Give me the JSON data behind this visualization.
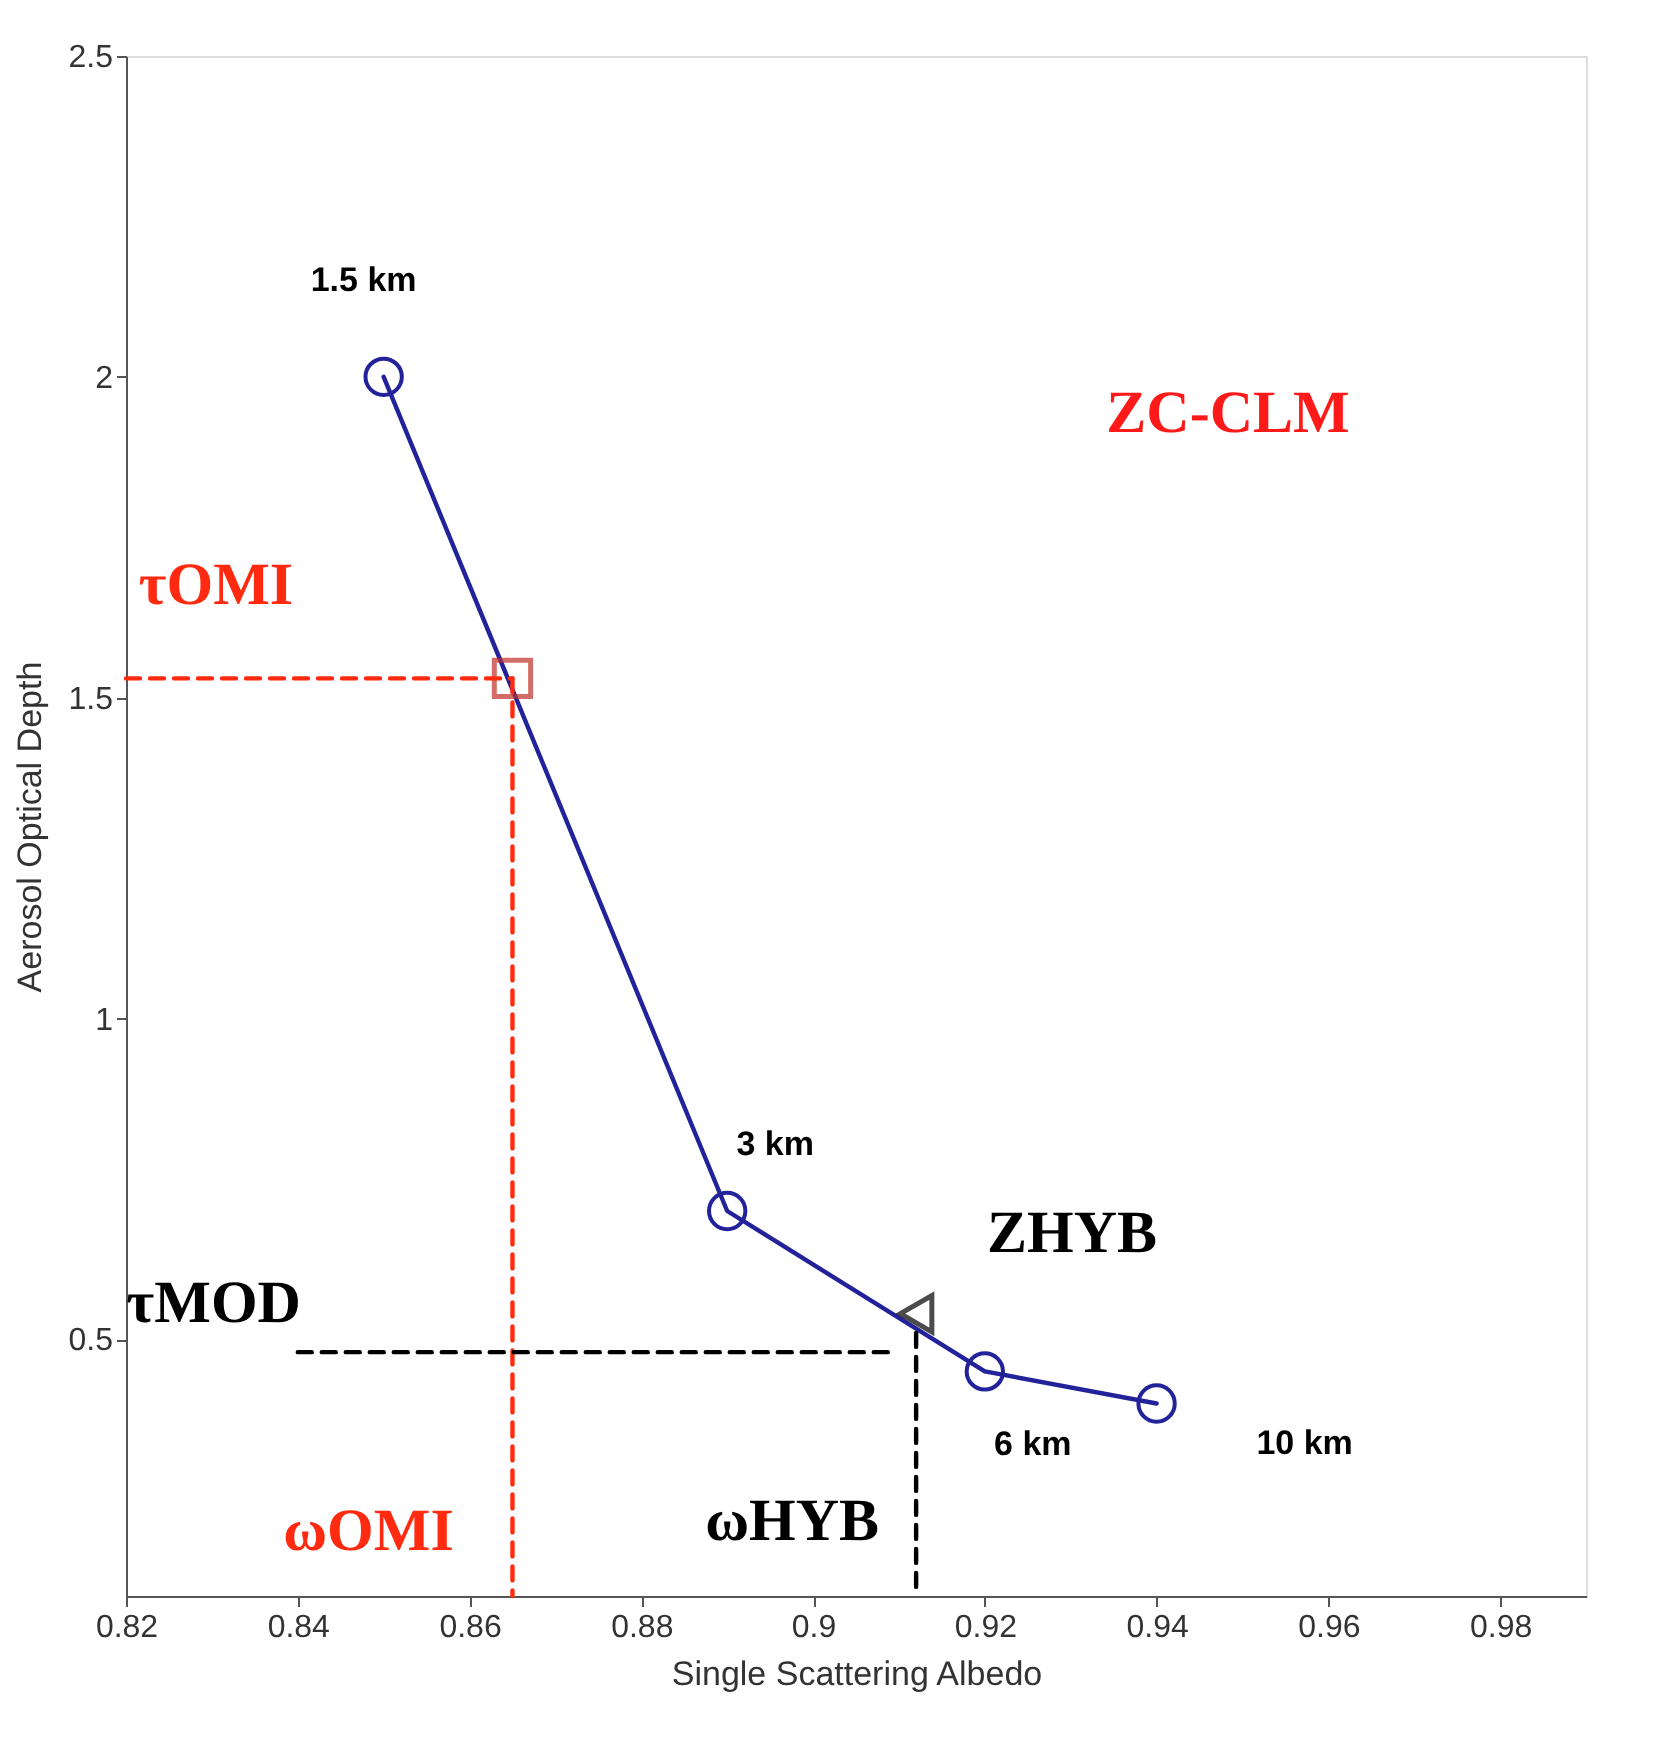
{
  "chart_data": {
    "type": "line",
    "xlabel": "Single Scattering Albedo",
    "ylabel": "Aerosol Optical Depth",
    "xlim": [
      0.82,
      0.99
    ],
    "ylim": [
      0.1,
      2.5
    ],
    "xticks": [
      0.82,
      0.84,
      0.86,
      0.88,
      0.9,
      0.92,
      0.94,
      0.96,
      0.98
    ],
    "yticks": [
      0.5,
      1,
      1.5,
      2,
      2.5
    ],
    "grid": false,
    "series": [
      {
        "color": "#22229a",
        "marker": "circle",
        "line_style": "solid",
        "x": [
          0.85,
          0.89,
          0.92,
          0.94
        ],
        "values": [
          2.0,
          0.7,
          0.45,
          0.4
        ]
      },
      {
        "type": "scatter",
        "color": "#c0302a",
        "marker": "square",
        "x": [
          0.865
        ],
        "values": [
          1.53
        ]
      },
      {
        "type": "scatter",
        "color": "#000000",
        "marker": "triangle",
        "x": [
          0.912
        ],
        "values": [
          0.54
        ]
      },
      {
        "color": "#ff2a10",
        "marker": "none",
        "line_style": "dashed",
        "x": [
          0.82,
          0.865
        ],
        "values": [
          1.53,
          1.53
        ]
      },
      {
        "color": "#ff2a10",
        "marker": "none",
        "line_style": "dashed",
        "x": [
          0.865,
          0.865
        ],
        "values": [
          1.53,
          0.1
        ]
      },
      {
        "color": "#000000",
        "marker": "none",
        "line_style": "dashed",
        "x": [
          0.84,
          0.909
        ],
        "values": [
          0.48,
          0.48
        ]
      },
      {
        "color": "#000000",
        "marker": "none",
        "line_style": "dashed",
        "x": [
          0.912,
          0.912
        ],
        "values": [
          0.51,
          0.1
        ]
      }
    ],
    "annotations": [
      {
        "text": "1.5 km",
        "x": 0.85,
        "y": 2.0
      },
      {
        "text": "3 km",
        "x": 0.89,
        "y": 0.7
      },
      {
        "text": "6 km",
        "x": 0.92,
        "y": 0.45
      },
      {
        "text": "10 km",
        "x": 0.94,
        "y": 0.4
      },
      {
        "text": "τOMI",
        "x": 0.82,
        "y": 1.53
      },
      "ZC-CLM",
      {
        "text": "ZHYB",
        "x": 0.912,
        "y": 0.54
      },
      {
        "text": "τMOD",
        "x": 0.84,
        "y": 0.48
      },
      {
        "text": "ωOMI",
        "x": 0.865,
        "y": 0.1
      },
      {
        "text": "ωHYB",
        "x": 0.912,
        "y": 0.1
      }
    ]
  }
}
